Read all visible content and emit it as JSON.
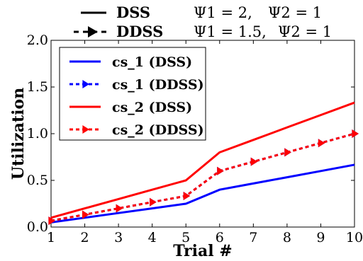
{
  "header": [
    {
      "style": "solid",
      "name": "DSS",
      "psi1": "Ψ1 = 2,",
      "psi2": "Ψ2 = 1"
    },
    {
      "style": "dashed",
      "name": "DDSS",
      "psi1": "Ψ1 = 1.5,",
      "psi2": "Ψ2 = 1"
    }
  ],
  "chart_data": {
    "type": "line",
    "xlabel": "Trial #",
    "ylabel": "Utilization",
    "xlim": [
      1,
      10
    ],
    "ylim": [
      0,
      2
    ],
    "x_ticks": [
      "1",
      "2",
      "3",
      "4",
      "5",
      "6",
      "7",
      "8",
      "9",
      "10"
    ],
    "y_ticks": [
      "0.0",
      "0.5",
      "1.0",
      "1.5",
      "2.0"
    ],
    "grid": false,
    "legend_position": "top-left",
    "x": [
      1,
      2,
      3,
      4,
      5,
      6,
      7,
      8,
      9,
      10
    ],
    "series": [
      {
        "name": "cs_1 (DSS)",
        "color": "#0000ff",
        "style": "solid",
        "marker": "none",
        "values": [
          0.05,
          0.1,
          0.15,
          0.2,
          0.25,
          0.4,
          0.467,
          0.533,
          0.6,
          0.667
        ]
      },
      {
        "name": "cs_1 (DDSS)",
        "color": "#0000ff",
        "style": "dashed",
        "marker": "triangle-right",
        "values": [
          0.067,
          0.133,
          0.2,
          0.267,
          0.333,
          0.6,
          0.7,
          0.8,
          0.9,
          1.0
        ]
      },
      {
        "name": "cs_2 (DSS)",
        "color": "#ff0000",
        "style": "solid",
        "marker": "none",
        "values": [
          0.1,
          0.2,
          0.3,
          0.4,
          0.5,
          0.8,
          0.933,
          1.067,
          1.2,
          1.333
        ]
      },
      {
        "name": "cs_2 (DDSS)",
        "color": "#ff0000",
        "style": "dashed",
        "marker": "triangle-right",
        "values": [
          0.067,
          0.133,
          0.2,
          0.267,
          0.333,
          0.6,
          0.7,
          0.8,
          0.9,
          1.0
        ]
      }
    ]
  }
}
